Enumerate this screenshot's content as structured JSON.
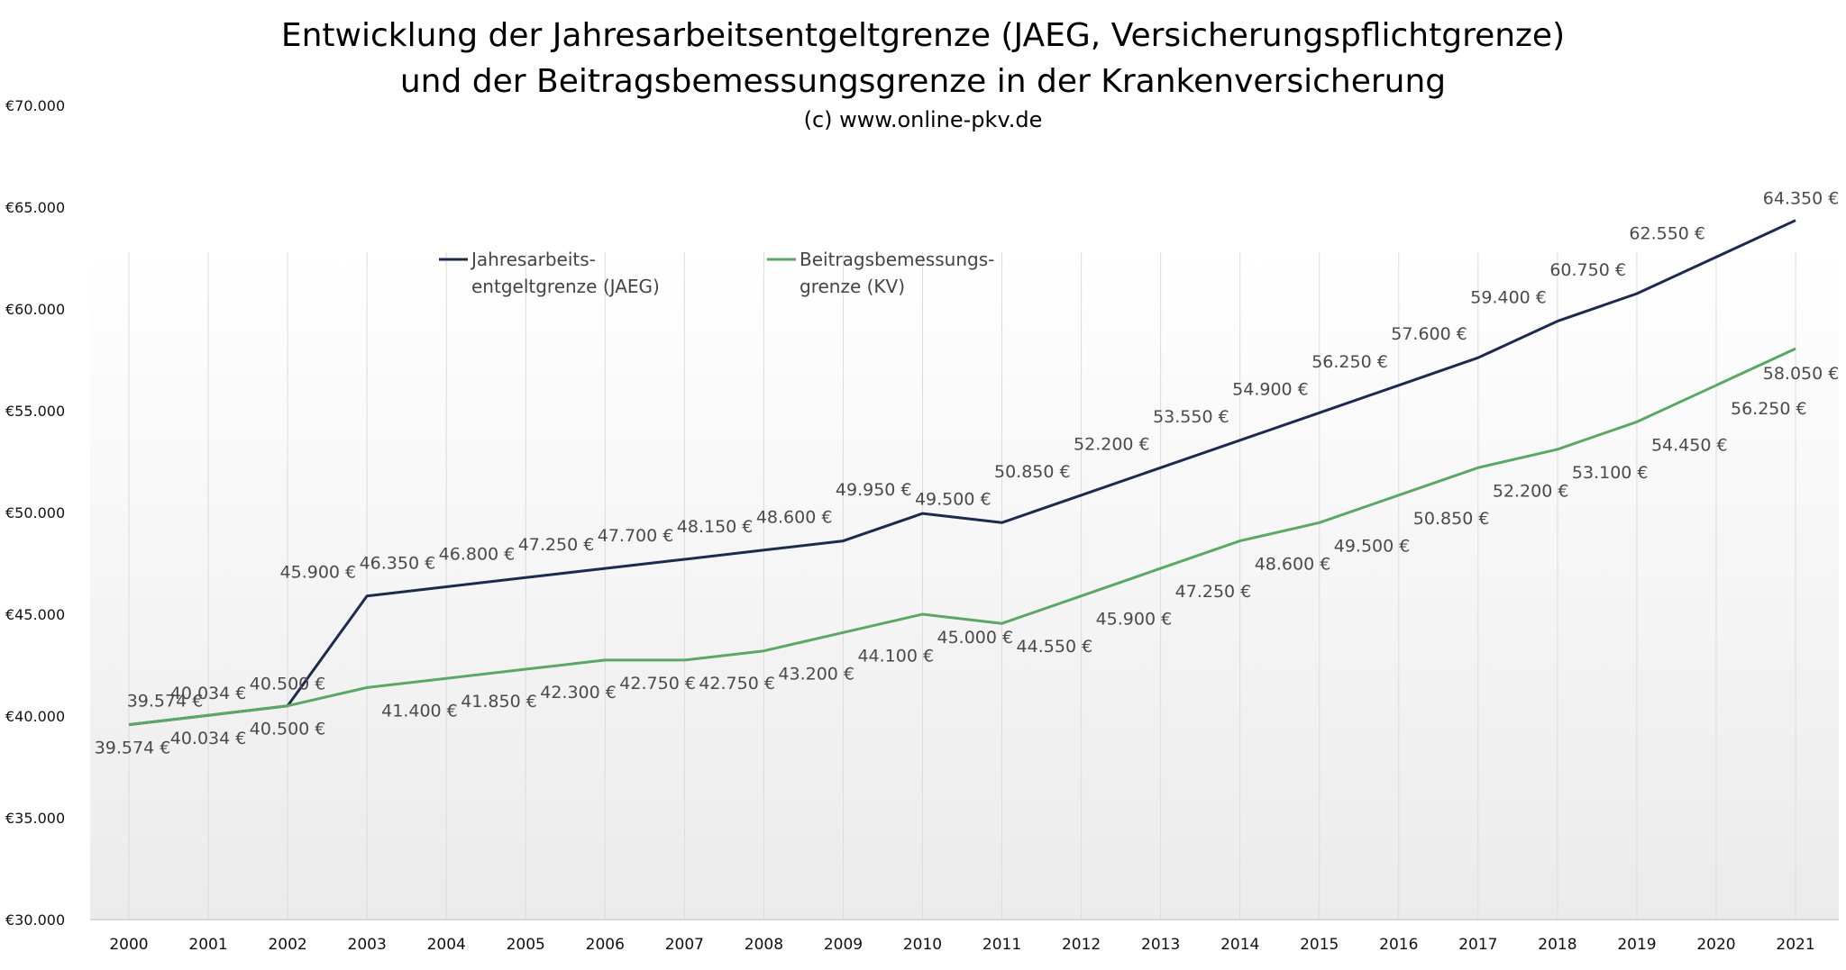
{
  "chart_data": {
    "type": "line",
    "title_lines": [
      "Entwicklung der Jahresarbeitsentgeltgrenze (JAEG, Versicherungspflichtgrenze)",
      "und der Beitragsbemessungsgrenze in der Krankenversicherung"
    ],
    "subtitle": "(c) www.online-pkv.de",
    "x": [
      "2000",
      "2001",
      "2002",
      "2003",
      "2004",
      "2005",
      "2006",
      "2007",
      "2008",
      "2009",
      "2010",
      "2011",
      "2012",
      "2013",
      "2014",
      "2015",
      "2016",
      "2017",
      "2018",
      "2019",
      "2020",
      "2021"
    ],
    "ylim": [
      30000,
      70000
    ],
    "y_ticks": [
      {
        "value": 30000,
        "label": "€30.000"
      },
      {
        "value": 35000,
        "label": "€35.000"
      },
      {
        "value": 40000,
        "label": "€40.000"
      },
      {
        "value": 45000,
        "label": "€45.000"
      },
      {
        "value": 50000,
        "label": "€50.000"
      },
      {
        "value": 55000,
        "label": "€55.000"
      },
      {
        "value": 60000,
        "label": "€60.000"
      },
      {
        "value": 65000,
        "label": "€65.000"
      },
      {
        "value": 70000,
        "label": "€70.000"
      }
    ],
    "grid": "vertical",
    "legend_position": "top-left",
    "series": [
      {
        "name_lines": [
          "Jahresarbeits-",
          "entgeltgrenze (JAEG)"
        ],
        "color": "#1c2a4e",
        "label_side": "above",
        "values": [
          39574,
          40034,
          40500,
          45900,
          46350,
          46800,
          47250,
          47700,
          48150,
          48600,
          49950,
          49500,
          50850,
          52200,
          53550,
          54900,
          56250,
          57600,
          59400,
          60750,
          62550,
          64350
        ],
        "labels": [
          "39.574 €",
          "40.034 €",
          "40.500 €",
          "45.900 €",
          "46.350 €",
          "46.800 €",
          "47.250 €",
          "47.700 €",
          "48.150 €",
          "48.600 €",
          "49.950 €",
          "49.500 €",
          "50.850 €",
          "52.200 €",
          "53.550 €",
          "54.900 €",
          "56.250 €",
          "57.600 €",
          "59.400 €",
          "60.750 €",
          "62.550 €",
          "64.350 €"
        ]
      },
      {
        "name_lines": [
          "Beitragsbemessungs-",
          "grenze (KV)"
        ],
        "color": "#5aa865",
        "label_side": "below",
        "values": [
          39574,
          40034,
          40500,
          41400,
          41850,
          42300,
          42750,
          42750,
          43200,
          44100,
          45000,
          44550,
          45900,
          47250,
          48600,
          49500,
          50850,
          52200,
          53100,
          54450,
          56250,
          58050
        ],
        "labels": [
          "39.574 €",
          "40.034 €",
          "40.500 €",
          "41.400 €",
          "41.850 €",
          "42.300 €",
          "42.750 €",
          "42.750 €",
          "43.200 €",
          "44.100 €",
          "45.000 €",
          "44.550 €",
          "45.900 €",
          "47.250 €",
          "48.600 €",
          "49.500 €",
          "50.850 €",
          "52.200 €",
          "53.100 €",
          "54.450 €",
          "56.250 €",
          "58.050 €"
        ]
      }
    ]
  }
}
